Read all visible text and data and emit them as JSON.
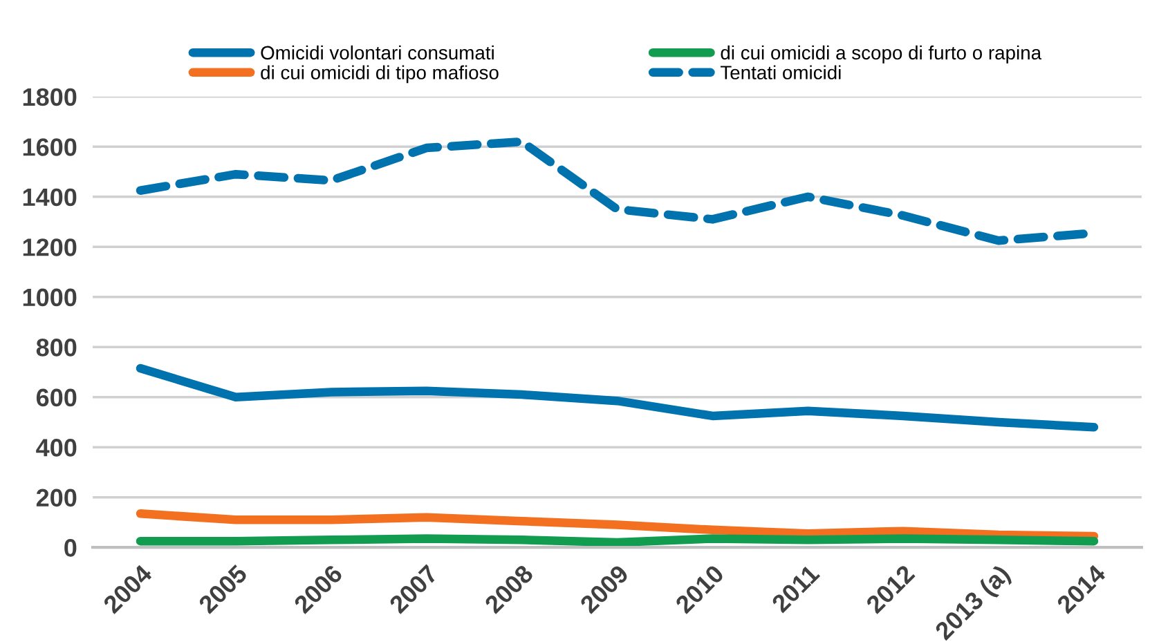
{
  "chart_data": {
    "type": "line",
    "categories": [
      "2004",
      "2005",
      "2006",
      "2007",
      "2008",
      "2009",
      "2010",
      "2011",
      "2012",
      "2013 (a)",
      "2014"
    ],
    "series": [
      {
        "name": "Omicidi volontari consumati",
        "color": "#0073ae",
        "line_style": "solid",
        "values": [
          715,
          600,
          620,
          625,
          610,
          585,
          525,
          545,
          525,
          500,
          480
        ]
      },
      {
        "name": "di cui omicidi di tipo mafioso",
        "color": "#f37021",
        "line_style": "solid",
        "values": [
          135,
          110,
          110,
          120,
          105,
          90,
          70,
          55,
          65,
          50,
          45
        ]
      },
      {
        "name": "di cui omicidi a scopo di furto o rapina",
        "color": "#129c4f",
        "line_style": "solid",
        "values": [
          25,
          25,
          30,
          35,
          30,
          20,
          35,
          30,
          35,
          30,
          25
        ]
      },
      {
        "name": "Tentati omicidi",
        "color": "#0073ae",
        "line_style": "dashed",
        "values": [
          1425,
          1490,
          1465,
          1595,
          1620,
          1350,
          1310,
          1400,
          1325,
          1225,
          1255
        ]
      }
    ],
    "ylim": [
      0,
      1800
    ],
    "yticks": [
      0,
      200,
      400,
      600,
      800,
      1000,
      1200,
      1400,
      1600,
      1800
    ],
    "grid": "y",
    "legend": "top",
    "marker": "none"
  }
}
